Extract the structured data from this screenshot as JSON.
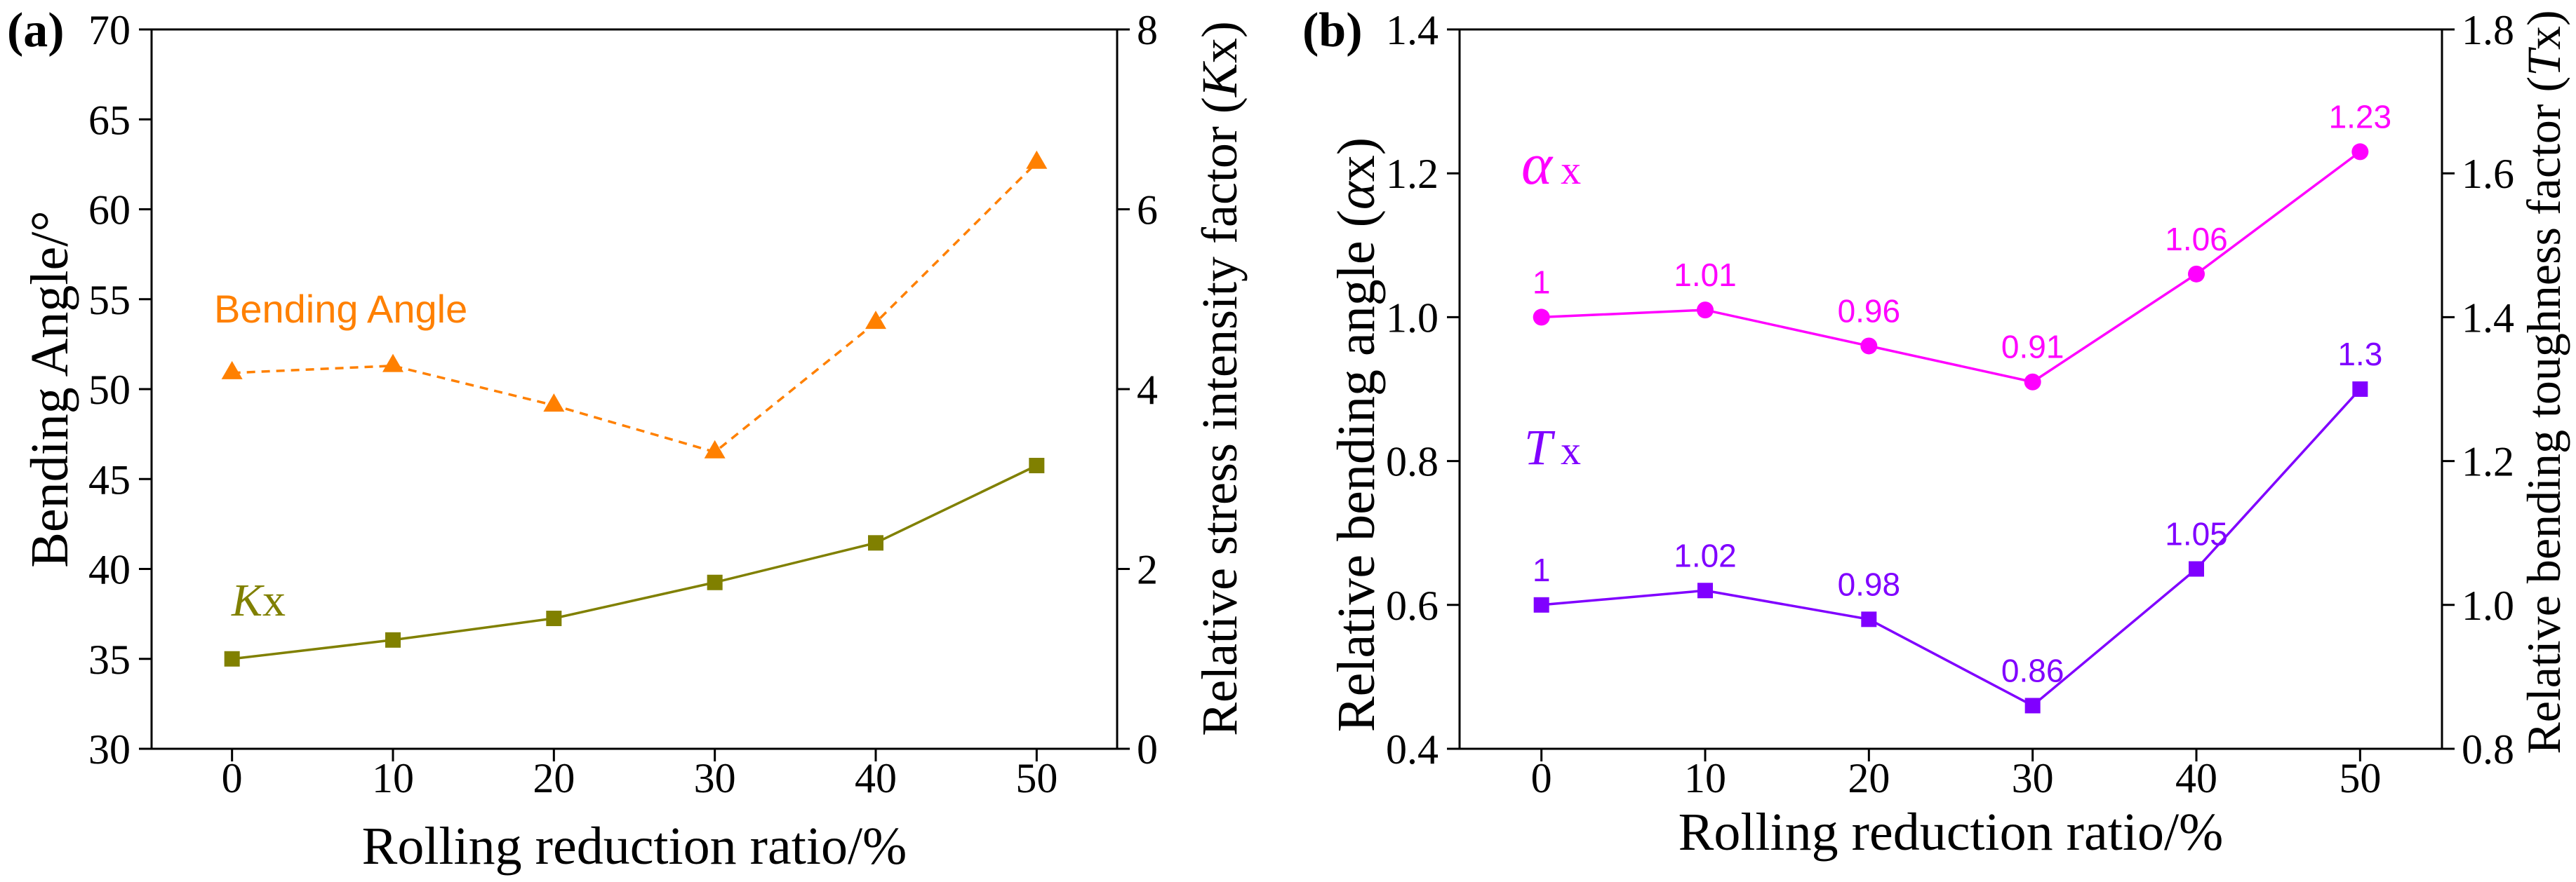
{
  "chart_data": [
    {
      "type": "line",
      "panel_label": "(a)",
      "xlabel": "Rolling reduction ratio/%",
      "ylabel": "Bending Angle/°",
      "y2label": [
        "Relative stress intensity factor (",
        "K",
        "x",
        ")"
      ],
      "xlim": [
        -5,
        55
      ],
      "ylim": [
        30,
        70
      ],
      "y2lim": [
        0,
        8
      ],
      "xticks": [
        "0",
        "10",
        "20",
        "30",
        "40",
        "50"
      ],
      "yticks": [
        "30",
        "35",
        "40",
        "45",
        "50",
        "55",
        "60",
        "65",
        "70"
      ],
      "y2ticks": [
        "0",
        "2",
        "4",
        "6",
        "8"
      ],
      "x": [
        0,
        10,
        20,
        30,
        40,
        50
      ],
      "series": [
        {
          "label": "Bending Angle",
          "secondary_axis": false,
          "color": "#FF8000",
          "values": [
            50.9,
            51.3,
            49.1,
            46.5,
            53.7,
            62.6
          ]
        },
        {
          "label": [
            "K",
            "x"
          ],
          "secondary_axis": true,
          "color": "#808000",
          "values": [
            1.0,
            1.21,
            1.45,
            1.85,
            2.29,
            3.15
          ]
        }
      ]
    },
    {
      "type": "line",
      "panel_label": "(b)",
      "xlabel": "Rolling reduction ratio/%",
      "ylabel": [
        "Relative bending angle (",
        "α",
        "x",
        ")"
      ],
      "y2label": [
        "Relative bending toughness factor (",
        "T",
        "x",
        ")"
      ],
      "xlim": [
        -5,
        55
      ],
      "ylim": [
        0.4,
        1.4
      ],
      "y2lim": [
        0.8,
        1.8
      ],
      "xticks": [
        "0",
        "10",
        "20",
        "30",
        "40",
        "50"
      ],
      "yticks": [
        "0.4",
        "0.6",
        "0.8",
        "1.0",
        "1.2",
        "1.4"
      ],
      "y2ticks": [
        "0.8",
        "1.0",
        "1.2",
        "1.4",
        "1.6",
        "1.8"
      ],
      "x": [
        0,
        10,
        20,
        30,
        40,
        50
      ],
      "series": [
        {
          "label": [
            "α",
            "x"
          ],
          "secondary_axis": false,
          "color": "#FF00FF",
          "values": [
            1.0,
            1.01,
            0.96,
            0.91,
            1.06,
            1.23
          ],
          "data_labels": [
            "1",
            "1.01",
            "0.96",
            "0.91",
            "1.06",
            "1.23"
          ]
        },
        {
          "label": [
            "T",
            "x"
          ],
          "secondary_axis": true,
          "color": "#8000FF",
          "values": [
            1.0,
            1.02,
            0.98,
            0.86,
            1.05,
            1.3
          ],
          "data_labels": [
            "1",
            "1.02",
            "0.98",
            "0.86",
            "1.05",
            "1.3"
          ]
        }
      ]
    }
  ]
}
